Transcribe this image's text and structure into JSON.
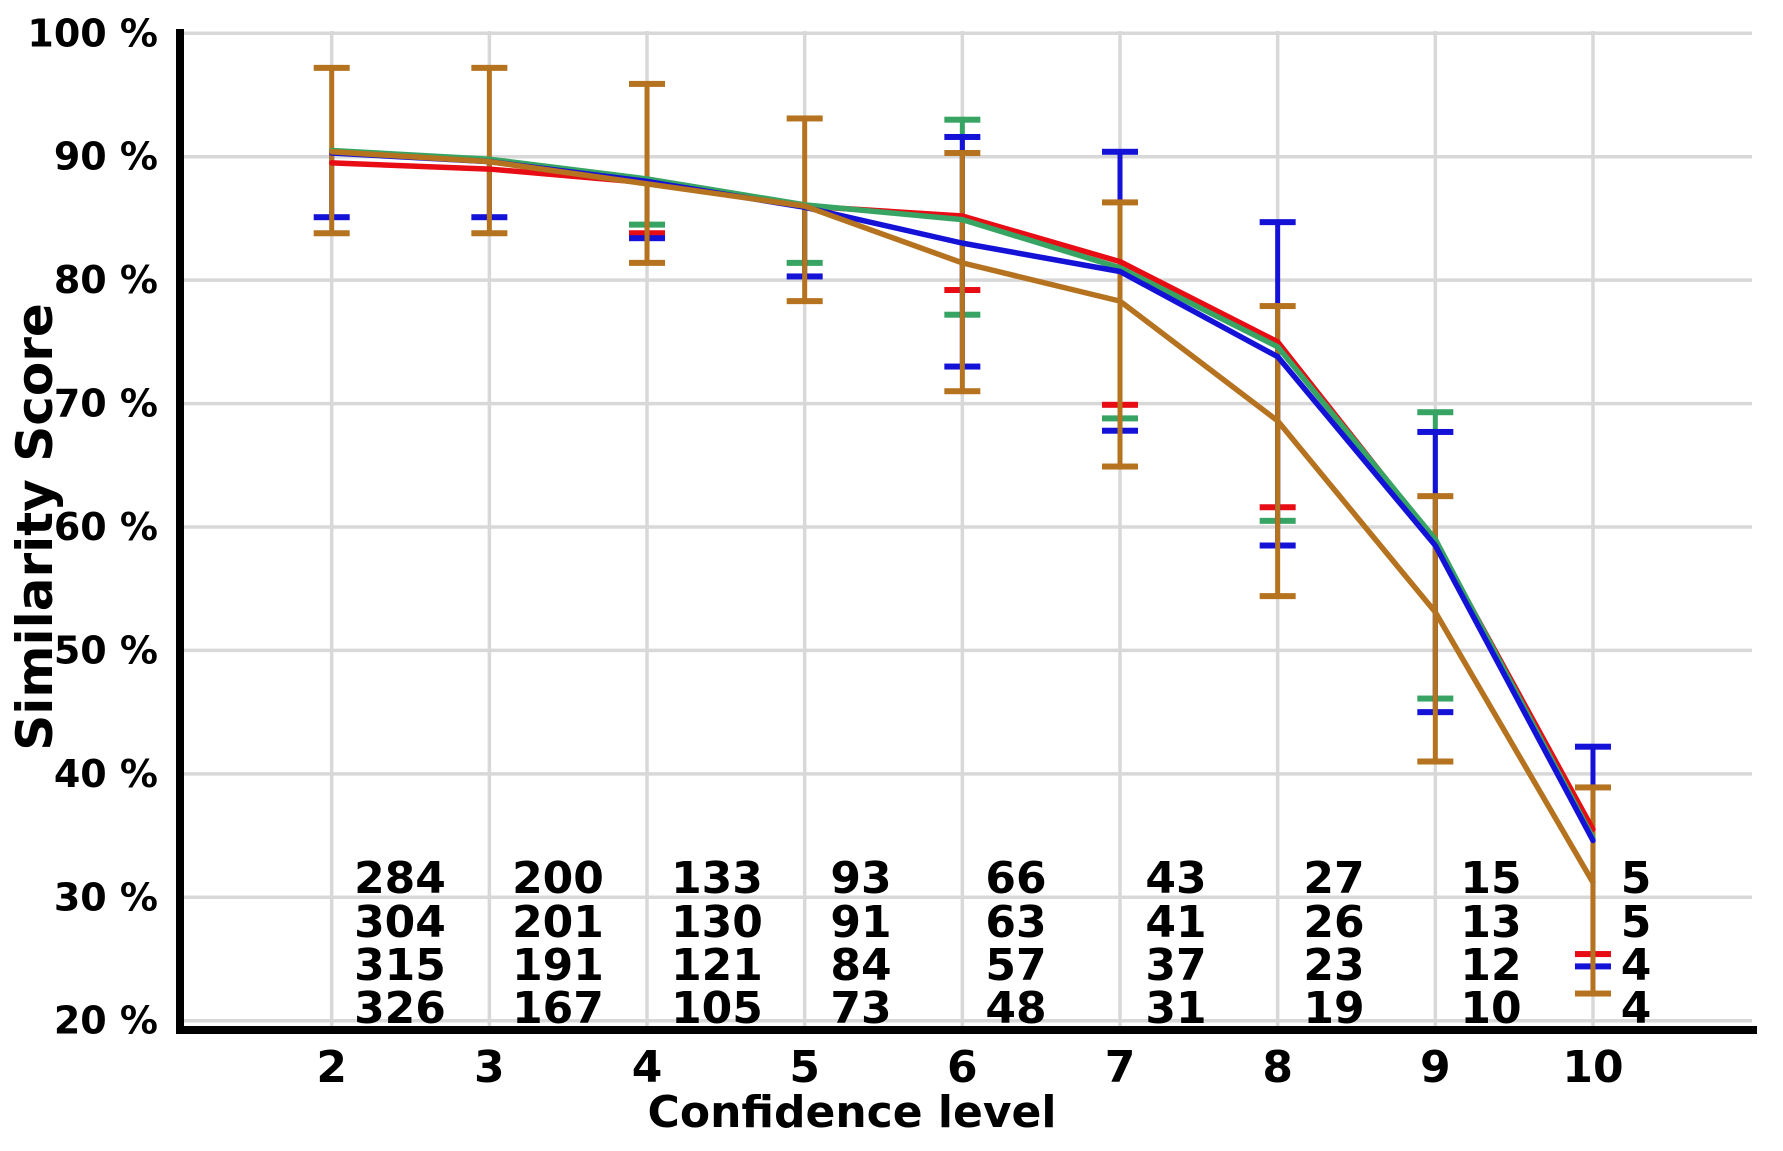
{
  "chart_data": {
    "type": "line",
    "title": "",
    "xlabel": "Confidence level",
    "ylabel": "Similarity Score",
    "x": [
      2,
      3,
      4,
      5,
      6,
      7,
      8,
      9,
      10
    ],
    "xlim": [
      1.03,
      11.0
    ],
    "ylim": [
      20,
      100
    ],
    "grid": true,
    "legend_position": "none",
    "ytick_values": [
      100,
      90,
      80,
      70,
      60,
      50,
      40,
      30,
      20
    ],
    "ytick_labels": [
      "100 %",
      "90 %",
      "80 %",
      "70 %",
      "60 %",
      "50 %",
      "40 %",
      "30 %",
      "20 %"
    ],
    "xtick_labels": [
      "2",
      "3",
      "4",
      "5",
      "6",
      "7",
      "8",
      "9",
      "10"
    ],
    "series": [
      {
        "name": "red",
        "color": "#e80c15",
        "values": [
          89.5,
          89.0,
          87.9,
          86.0,
          85.2,
          81.5,
          75.0,
          58.8,
          35.5
        ],
        "err_low": [
          null,
          null,
          83.8,
          null,
          79.2,
          69.9,
          61.6,
          null,
          25.4
        ],
        "err_high": [
          null,
          null,
          null,
          null,
          null,
          null,
          null,
          null,
          null
        ],
        "counts": [
          284,
          200,
          133,
          93,
          66,
          43,
          27,
          15,
          5
        ]
      },
      {
        "name": "green",
        "color": "#37a463",
        "values": [
          90.5,
          89.8,
          88.2,
          86.1,
          84.9,
          81.0,
          74.6,
          59.0,
          34.8
        ],
        "err_low": [
          null,
          null,
          84.5,
          81.4,
          77.2,
          68.8,
          60.5,
          46.1,
          null
        ],
        "err_high": [
          null,
          null,
          null,
          null,
          93.0,
          null,
          null,
          69.3,
          null
        ],
        "counts": [
          304,
          201,
          130,
          91,
          63,
          41,
          26,
          13,
          5
        ]
      },
      {
        "name": "blue",
        "color": "#1512d8",
        "values": [
          90.3,
          89.6,
          88.0,
          85.9,
          83.0,
          80.7,
          73.8,
          58.5,
          34.6
        ],
        "err_low": [
          85.1,
          85.1,
          83.4,
          80.3,
          73.0,
          67.8,
          58.5,
          45.0,
          24.4
        ],
        "err_high": [
          null,
          null,
          null,
          null,
          91.6,
          90.4,
          84.7,
          67.7,
          42.2
        ],
        "counts": [
          315,
          191,
          121,
          84,
          57,
          37,
          23,
          12,
          4
        ]
      },
      {
        "name": "brown",
        "color": "#b5721f",
        "values": [
          90.4,
          89.6,
          87.8,
          86.0,
          81.4,
          78.3,
          68.6,
          53.1,
          31.2
        ],
        "err_low": [
          83.8,
          83.8,
          81.4,
          78.3,
          71.0,
          64.9,
          54.4,
          41.0,
          22.2
        ],
        "err_high": [
          97.2,
          97.2,
          95.9,
          93.1,
          90.3,
          86.3,
          77.9,
          62.5,
          38.9
        ],
        "counts": [
          326,
          167,
          105,
          73,
          48,
          31,
          19,
          10,
          4
        ]
      }
    ]
  },
  "colors": {
    "background": "#ffffff",
    "grid": "#d8d8d8",
    "axis": "#000000"
  }
}
